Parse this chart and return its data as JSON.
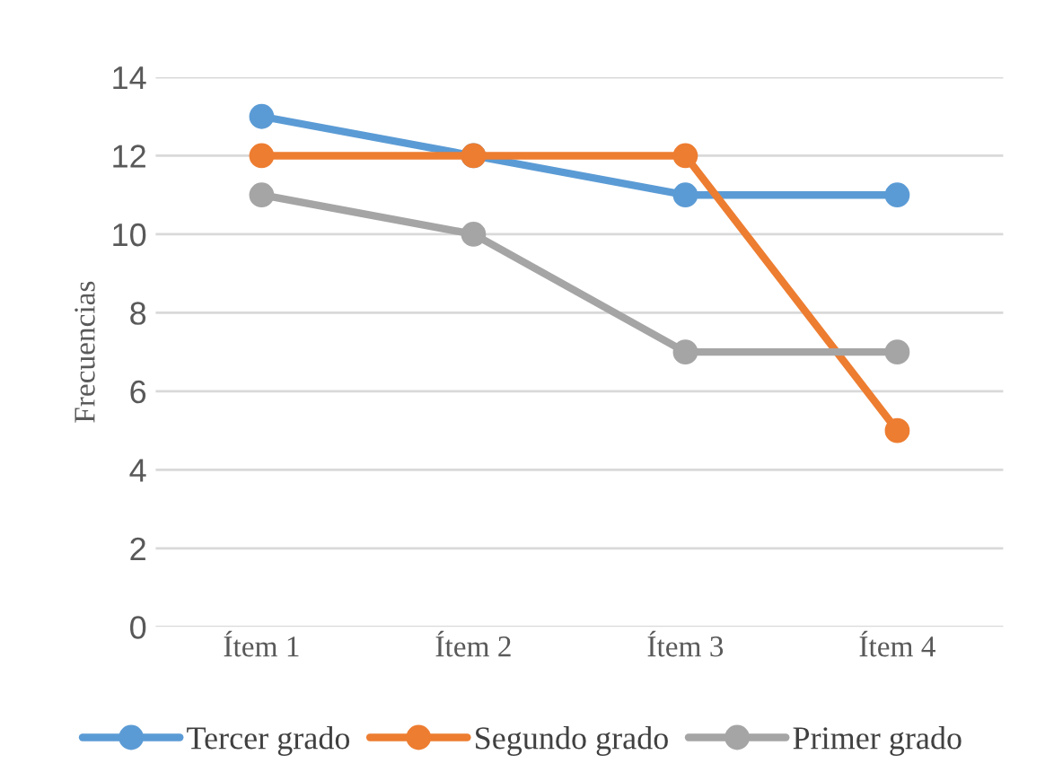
{
  "chart_data": {
    "type": "line",
    "ylabel": "Frecuencias",
    "categories": [
      "Ítem 1",
      "Ítem 2",
      "Ítem 3",
      "Ítem 4"
    ],
    "series": [
      {
        "name": "Tercer grado",
        "color": "#5b9bd5",
        "values": [
          13,
          12,
          11,
          11
        ]
      },
      {
        "name": "Segundo grado",
        "color": "#ed7d31",
        "values": [
          12,
          12,
          12,
          5
        ]
      },
      {
        "name": "Primer grado",
        "color": "#a5a5a5",
        "values": [
          11,
          10,
          7,
          7
        ]
      }
    ],
    "ylim": [
      0,
      14
    ],
    "yticks": [
      0,
      2,
      4,
      6,
      8,
      10,
      12,
      14
    ],
    "grid": "y",
    "legend": "bottom",
    "marker": "circle",
    "line_style": "solid"
  }
}
